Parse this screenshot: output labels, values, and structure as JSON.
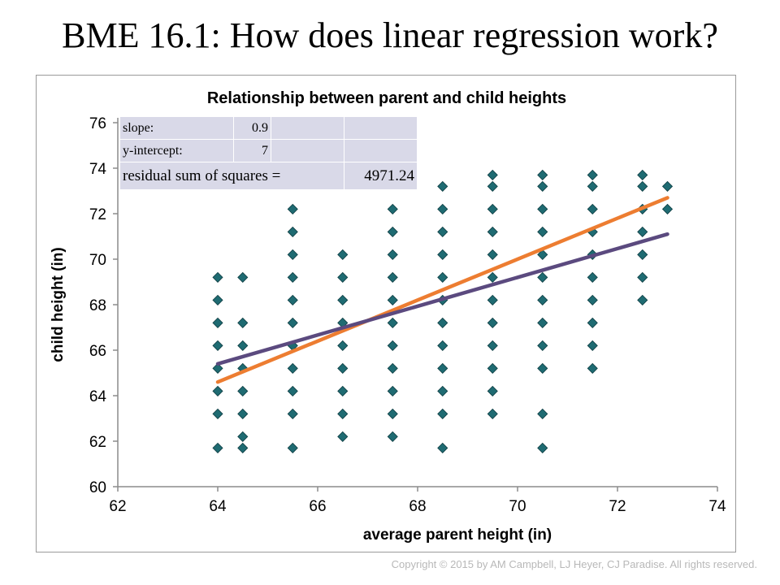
{
  "slide": {
    "title": "BME 16.1: How does linear regression work?",
    "copyright": "Copyright © 2015 by AM Campbell, LJ Heyer, CJ Paradise. All rights reserved."
  },
  "stats": {
    "slope_label": "slope:",
    "slope_value": "0.9",
    "intercept_label": "y-intercept:",
    "intercept_value": "7",
    "rss_label": "residual sum of squares =",
    "rss_value": "4971.24"
  },
  "chart_data": {
    "type": "scatter",
    "title": "Relationship between parent and child heights",
    "xlabel": "average parent height (in)",
    "ylabel": "child height (in)",
    "xlim": [
      62,
      74
    ],
    "ylim": [
      60,
      76
    ],
    "x_ticks": [
      "62",
      "64",
      "66",
      "68",
      "70",
      "72",
      "74"
    ],
    "y_ticks": [
      "60",
      "62",
      "64",
      "66",
      "68",
      "70",
      "72",
      "74",
      "76"
    ],
    "grid": false,
    "legend": "none",
    "marker_color": "#1f6b72",
    "points": [
      [
        64.0,
        61.7
      ],
      [
        64.0,
        63.2
      ],
      [
        64.0,
        64.2
      ],
      [
        64.0,
        65.2
      ],
      [
        64.0,
        66.2
      ],
      [
        64.0,
        67.2
      ],
      [
        64.0,
        68.2
      ],
      [
        64.0,
        69.2
      ],
      [
        64.5,
        61.7
      ],
      [
        64.5,
        62.2
      ],
      [
        64.5,
        63.2
      ],
      [
        64.5,
        64.2
      ],
      [
        64.5,
        65.2
      ],
      [
        64.5,
        66.2
      ],
      [
        64.5,
        67.2
      ],
      [
        64.5,
        69.2
      ],
      [
        65.5,
        61.7
      ],
      [
        65.5,
        63.2
      ],
      [
        65.5,
        64.2
      ],
      [
        65.5,
        65.2
      ],
      [
        65.5,
        66.2
      ],
      [
        65.5,
        67.2
      ],
      [
        65.5,
        68.2
      ],
      [
        65.5,
        69.2
      ],
      [
        65.5,
        70.2
      ],
      [
        65.5,
        71.2
      ],
      [
        65.5,
        72.2
      ],
      [
        66.5,
        62.2
      ],
      [
        66.5,
        63.2
      ],
      [
        66.5,
        64.2
      ],
      [
        66.5,
        65.2
      ],
      [
        66.5,
        66.2
      ],
      [
        66.5,
        67.2
      ],
      [
        66.5,
        68.2
      ],
      [
        66.5,
        69.2
      ],
      [
        66.5,
        70.2
      ],
      [
        67.5,
        62.2
      ],
      [
        67.5,
        63.2
      ],
      [
        67.5,
        64.2
      ],
      [
        67.5,
        65.2
      ],
      [
        67.5,
        66.2
      ],
      [
        67.5,
        67.2
      ],
      [
        67.5,
        68.2
      ],
      [
        67.5,
        69.2
      ],
      [
        67.5,
        70.2
      ],
      [
        67.5,
        71.2
      ],
      [
        67.5,
        72.2
      ],
      [
        68.5,
        61.7
      ],
      [
        68.5,
        63.2
      ],
      [
        68.5,
        64.2
      ],
      [
        68.5,
        65.2
      ],
      [
        68.5,
        66.2
      ],
      [
        68.5,
        67.2
      ],
      [
        68.5,
        68.2
      ],
      [
        68.5,
        69.2
      ],
      [
        68.5,
        70.2
      ],
      [
        68.5,
        71.2
      ],
      [
        68.5,
        72.2
      ],
      [
        68.5,
        73.2
      ],
      [
        69.5,
        63.2
      ],
      [
        69.5,
        64.2
      ],
      [
        69.5,
        65.2
      ],
      [
        69.5,
        66.2
      ],
      [
        69.5,
        67.2
      ],
      [
        69.5,
        68.2
      ],
      [
        69.5,
        69.2
      ],
      [
        69.5,
        70.2
      ],
      [
        69.5,
        71.2
      ],
      [
        69.5,
        72.2
      ],
      [
        69.5,
        73.2
      ],
      [
        69.5,
        73.7
      ],
      [
        70.5,
        61.7
      ],
      [
        70.5,
        63.2
      ],
      [
        70.5,
        65.2
      ],
      [
        70.5,
        66.2
      ],
      [
        70.5,
        67.2
      ],
      [
        70.5,
        68.2
      ],
      [
        70.5,
        69.2
      ],
      [
        70.5,
        70.2
      ],
      [
        70.5,
        71.2
      ],
      [
        70.5,
        72.2
      ],
      [
        70.5,
        73.2
      ],
      [
        70.5,
        73.7
      ],
      [
        71.5,
        65.2
      ],
      [
        71.5,
        66.2
      ],
      [
        71.5,
        67.2
      ],
      [
        71.5,
        68.2
      ],
      [
        71.5,
        69.2
      ],
      [
        71.5,
        70.2
      ],
      [
        71.5,
        71.2
      ],
      [
        71.5,
        72.2
      ],
      [
        71.5,
        73.2
      ],
      [
        71.5,
        73.7
      ],
      [
        72.5,
        68.2
      ],
      [
        72.5,
        69.2
      ],
      [
        72.5,
        70.2
      ],
      [
        72.5,
        71.2
      ],
      [
        72.5,
        72.2
      ],
      [
        72.5,
        73.2
      ],
      [
        72.5,
        73.7
      ],
      [
        73.0,
        72.2
      ],
      [
        73.0,
        73.2
      ]
    ],
    "lines": [
      {
        "color": "#ed7d31",
        "x": [
          64,
          73
        ],
        "y": [
          64.6,
          72.7
        ]
      },
      {
        "color": "#5b4a7f",
        "x": [
          64,
          73
        ],
        "y": [
          65.4,
          71.1
        ]
      }
    ]
  }
}
